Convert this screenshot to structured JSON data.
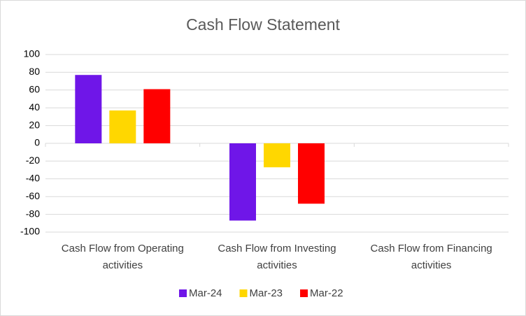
{
  "chart_data": {
    "type": "bar",
    "title": "Cash Flow Statement",
    "categories": [
      "Cash Flow from Operating activities",
      "Cash Flow from Investing activities",
      "Cash Flow from Financing activities"
    ],
    "series": [
      {
        "name": "Mar-24",
        "color": "#6f16e8",
        "values": [
          77,
          -87,
          0
        ]
      },
      {
        "name": "Mar-23",
        "color": "#ffd700",
        "values": [
          37,
          -27,
          0
        ]
      },
      {
        "name": "Mar-22",
        "color": "#ff0000",
        "values": [
          61,
          -68,
          0
        ]
      }
    ],
    "ylim": [
      -100,
      100
    ],
    "yticks": [
      -100,
      -80,
      -60,
      -40,
      -20,
      0,
      20,
      40,
      60,
      80,
      100
    ],
    "grid": true,
    "legend": "bottom"
  }
}
